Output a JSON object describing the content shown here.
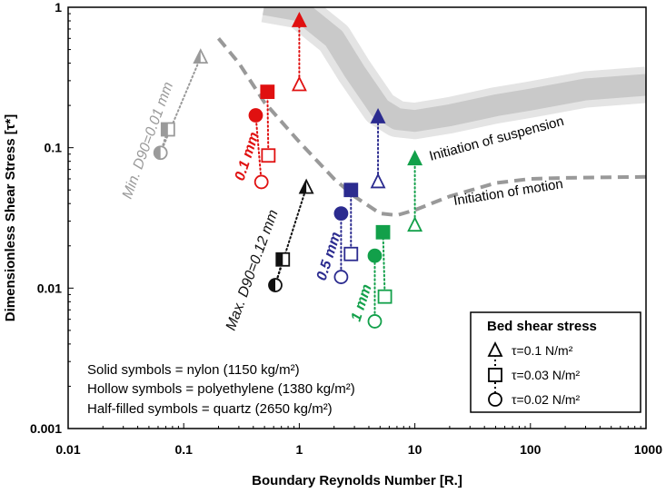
{
  "chart_data": {
    "type": "scatter",
    "xscale": "log",
    "yscale": "log",
    "xlim": [
      0.01,
      1000
    ],
    "ylim": [
      0.001,
      1
    ],
    "xlabel": "Boundary Reynolds Number [R.]",
    "ylabel": "Dimensionless Shear Stress [τ*]",
    "xticks": [
      "0.01",
      "0.1",
      "1",
      "10",
      "100",
      "1000"
    ],
    "yticks": [
      "0.001",
      "0.01",
      "0.1",
      "1"
    ],
    "curves": [
      {
        "label": "Initiation of motion",
        "style": "dashed",
        "color": "#999999",
        "points": [
          [
            0.2,
            0.6
          ],
          [
            0.3,
            0.4
          ],
          [
            0.5,
            0.21
          ],
          [
            1,
            0.11
          ],
          [
            2,
            0.06
          ],
          [
            3,
            0.045
          ],
          [
            5,
            0.034
          ],
          [
            7,
            0.033
          ],
          [
            10,
            0.036
          ],
          [
            20,
            0.045
          ],
          [
            50,
            0.056
          ],
          [
            100,
            0.06
          ],
          [
            200,
            0.061
          ],
          [
            1000,
            0.062
          ]
        ]
      }
    ],
    "bands": [
      {
        "label": "Initiation of suspension",
        "color": "#c9c9c9",
        "center": [
          [
            0.5,
            1.05
          ],
          [
            1,
            0.95
          ],
          [
            2,
            0.6
          ],
          [
            3,
            0.35
          ],
          [
            5,
            0.19
          ],
          [
            7,
            0.16
          ],
          [
            10,
            0.155
          ],
          [
            20,
            0.17
          ],
          [
            50,
            0.2
          ],
          [
            100,
            0.22
          ],
          [
            300,
            0.26
          ],
          [
            1000,
            0.28
          ]
        ]
      }
    ],
    "series": [
      {
        "name": "0.1 mm",
        "color": "#e01010",
        "points": [
          {
            "x": 0.47,
            "y": 0.057,
            "symbol": "circle",
            "fill": "hollow"
          },
          {
            "x": 0.42,
            "y": 0.17,
            "symbol": "circle",
            "fill": "solid"
          },
          {
            "x": 0.54,
            "y": 0.088,
            "symbol": "square",
            "fill": "hollow"
          },
          {
            "x": 0.53,
            "y": 0.25,
            "symbol": "square",
            "fill": "solid"
          },
          {
            "x": 1.0,
            "y": 0.28,
            "symbol": "triangle",
            "fill": "hollow"
          },
          {
            "x": 1.0,
            "y": 0.8,
            "symbol": "triangle",
            "fill": "solid"
          }
        ]
      },
      {
        "name": "0.5 mm",
        "color": "#2b2b8f",
        "points": [
          {
            "x": 2.3,
            "y": 0.012,
            "symbol": "circle",
            "fill": "hollow"
          },
          {
            "x": 2.3,
            "y": 0.034,
            "symbol": "circle",
            "fill": "solid"
          },
          {
            "x": 2.8,
            "y": 0.0175,
            "symbol": "square",
            "fill": "hollow"
          },
          {
            "x": 2.8,
            "y": 0.05,
            "symbol": "square",
            "fill": "solid"
          },
          {
            "x": 4.8,
            "y": 0.057,
            "symbol": "triangle",
            "fill": "hollow"
          },
          {
            "x": 4.8,
            "y": 0.165,
            "symbol": "triangle",
            "fill": "solid"
          }
        ]
      },
      {
        "name": "1 mm",
        "color": "#12a04a",
        "points": [
          {
            "x": 4.5,
            "y": 0.0058,
            "symbol": "circle",
            "fill": "hollow"
          },
          {
            "x": 4.5,
            "y": 0.017,
            "symbol": "circle",
            "fill": "solid"
          },
          {
            "x": 5.5,
            "y": 0.0087,
            "symbol": "square",
            "fill": "hollow"
          },
          {
            "x": 5.3,
            "y": 0.025,
            "symbol": "square",
            "fill": "solid"
          },
          {
            "x": 10,
            "y": 0.028,
            "symbol": "triangle",
            "fill": "hollow"
          },
          {
            "x": 10,
            "y": 0.083,
            "symbol": "triangle",
            "fill": "solid"
          }
        ]
      },
      {
        "name": "Min. D90=0.01 mm",
        "color": "#9a9a9a",
        "points": [
          {
            "x": 0.063,
            "y": 0.092,
            "symbol": "circle",
            "fill": "half"
          },
          {
            "x": 0.073,
            "y": 0.135,
            "symbol": "square",
            "fill": "half"
          },
          {
            "x": 0.14,
            "y": 0.44,
            "symbol": "triangle",
            "fill": "half"
          }
        ]
      },
      {
        "name": "Max. D90=0.12 mm",
        "color": "#111111",
        "points": [
          {
            "x": 0.62,
            "y": 0.0105,
            "symbol": "circle",
            "fill": "half"
          },
          {
            "x": 0.72,
            "y": 0.016,
            "symbol": "square",
            "fill": "half"
          },
          {
            "x": 1.15,
            "y": 0.052,
            "symbol": "triangle",
            "fill": "half"
          }
        ]
      }
    ],
    "annotations": {
      "initiation_suspension": "Initiation of suspension",
      "initiation_motion": "Initiation of motion",
      "label_01": "0.1 mm",
      "label_05": "0.5 mm",
      "label_1": "1 mm",
      "label_min": "Min. D90=0.01 mm",
      "label_max": "Max. D90=0.12 mm",
      "notes": [
        "Solid symbols = nylon (1150 kg/m²)",
        "Hollow symbols = polyethylene (1380 kg/m²)",
        "Half-filled symbols = quartz (2650 kg/m²)"
      ]
    },
    "legend": {
      "title": "Bed shear stress",
      "placement": "bottom-right",
      "entries": [
        {
          "symbol": "triangle",
          "label": "τ=0.1 N/m²"
        },
        {
          "symbol": "square",
          "label": "τ=0.03 N/m²"
        },
        {
          "symbol": "circle",
          "label": "τ=0.02 N/m²"
        }
      ]
    }
  }
}
